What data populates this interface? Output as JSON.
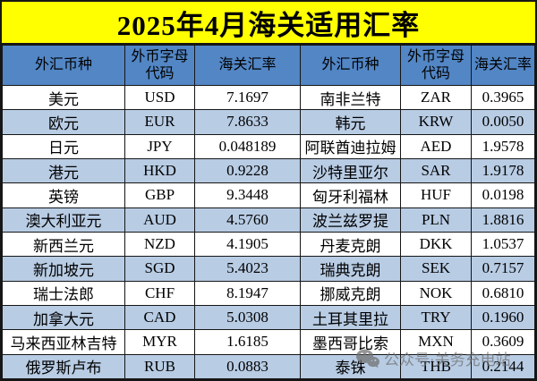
{
  "title": "2025年4月海关适用汇率",
  "table": {
    "headers": [
      "外汇币种",
      "外币字母代码",
      "海关汇率",
      "外汇币种",
      "外币字母代码",
      "海关汇率"
    ],
    "rows": [
      [
        "美元",
        "USD",
        "7.1697",
        "南非兰特",
        "ZAR",
        "0.3965"
      ],
      [
        "欧元",
        "EUR",
        "7.8633",
        "韩元",
        "KRW",
        "0.0050"
      ],
      [
        "日元",
        "JPY",
        "0.048189",
        "阿联酋迪拉姆",
        "AED",
        "1.9578"
      ],
      [
        "港元",
        "HKD",
        "0.9228",
        "沙特里亚尔",
        "SAR",
        "1.9178"
      ],
      [
        "英镑",
        "GBP",
        "9.3448",
        "匈牙利福林",
        "HUF",
        "0.0198"
      ],
      [
        "澳大利亚元",
        "AUD",
        "4.5760",
        "波兰兹罗提",
        "PLN",
        "1.8816"
      ],
      [
        "新西兰元",
        "NZD",
        "4.1905",
        "丹麦克朗",
        "DKK",
        "1.0537"
      ],
      [
        "新加坡元",
        "SGD",
        "5.4023",
        "瑞典克朗",
        "SEK",
        "0.7157"
      ],
      [
        "瑞士法郎",
        "CHF",
        "8.1947",
        "挪威克朗",
        "NOK",
        "0.6810"
      ],
      [
        "加拿大元",
        "CAD",
        "5.0308",
        "土耳其里拉",
        "TRY",
        "0.1960"
      ],
      [
        "马来西亚林吉特",
        "MYR",
        "1.6185",
        "墨西哥比索",
        "MXN",
        "0.3609"
      ],
      [
        "俄罗斯卢布",
        "RUB",
        "0.0883",
        "泰铢",
        "THB",
        "0.2144"
      ]
    ]
  },
  "watermark": {
    "icon": "wechat-icon",
    "text": "公众号·关务充电站"
  },
  "colors": {
    "title_bg": "#FFFF00",
    "header_bg": "#5286C5",
    "row_bg": "#FFFFFF",
    "row_alt_bg": "#B8CCE4",
    "border": "#161616",
    "text": "#000000",
    "watermark": "#6E6E6E"
  }
}
